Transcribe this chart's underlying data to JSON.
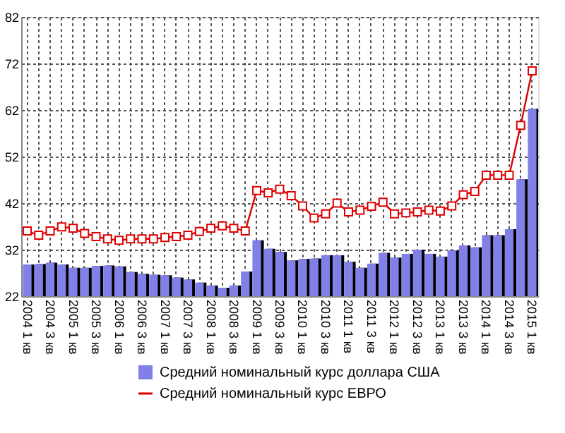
{
  "chart_data": {
    "type": "bar",
    "categories": [
      "2004 1 кв",
      null,
      "2004 3 кв",
      null,
      "2005 1 кв",
      null,
      "2005 3 кв",
      null,
      "2006 1 кв",
      null,
      "2006 3 кв",
      null,
      "2007 1 кв",
      null,
      "2007 3 кв",
      null,
      "2008 1 кв",
      null,
      "2008 3 кв",
      null,
      "2009 1 кв",
      null,
      "2009 3 кв",
      null,
      "2010 1 кв",
      null,
      "2010 3 кв",
      null,
      "2011 1 кв",
      null,
      "2011 3 кв",
      null,
      "2012 1 кв",
      null,
      "2012 3 кв",
      null,
      "2013 1 кв",
      null,
      "2013 3 кв",
      null,
      "2014 1 кв",
      null,
      "2014 3 кв",
      null,
      "2015 1 кв"
    ],
    "series": [
      {
        "name": "Средний номинальный курс доллара США",
        "color": "#8080e8",
        "values": [
          28.8,
          28.9,
          29.2,
          28.8,
          28.1,
          28.1,
          28.5,
          28.6,
          28.4,
          27.2,
          26.8,
          26.6,
          26.5,
          26.0,
          25.6,
          24.9,
          24.3,
          23.8,
          24.3,
          27.3,
          34.0,
          32.2,
          31.5,
          29.7,
          30.0,
          30.1,
          30.8,
          30.8,
          29.4,
          28.1,
          29.0,
          31.3,
          30.3,
          31.1,
          32.0,
          31.1,
          30.5,
          31.8,
          32.9,
          32.5,
          35.1,
          35.1,
          36.4,
          47.1,
          62.3
        ]
      },
      {
        "name": "Средний номинальный курс ЕВРО",
        "type": "line",
        "color": "#e00000",
        "marker": "square",
        "values": [
          36.0,
          35.1,
          36.0,
          36.9,
          36.6,
          35.5,
          34.8,
          34.3,
          34.0,
          34.3,
          34.3,
          34.3,
          34.6,
          34.8,
          35.1,
          35.9,
          36.6,
          37.1,
          36.6,
          36.0,
          44.7,
          44.2,
          45.0,
          43.6,
          41.4,
          38.8,
          39.7,
          42.0,
          40.1,
          40.5,
          41.3,
          42.2,
          39.7,
          39.9,
          40.1,
          40.5,
          40.3,
          41.4,
          43.8,
          44.5,
          48.0,
          48.0,
          48.0,
          58.7,
          70.4
        ]
      }
    ],
    "ylim": [
      22,
      82
    ],
    "yticks": [
      22,
      32,
      42,
      52,
      62,
      72,
      82
    ],
    "grid": true,
    "legend": "bottom"
  }
}
